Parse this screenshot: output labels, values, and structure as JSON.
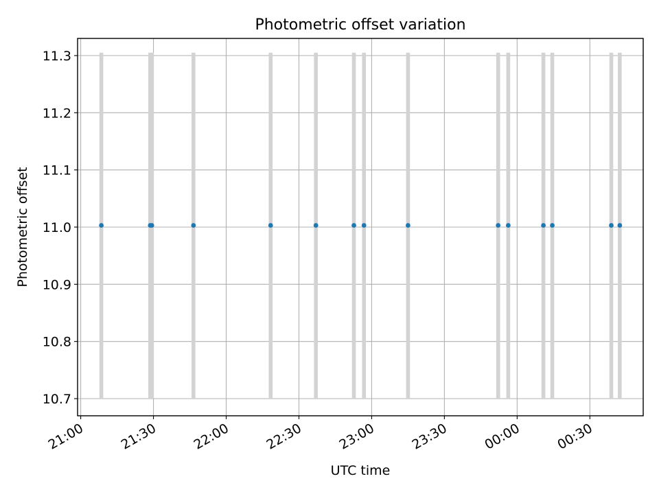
{
  "chart_data": {
    "type": "scatter",
    "title": "Photometric offset variation",
    "xlabel": "UTC time",
    "ylabel": "Photometric offset",
    "x_is_time": true,
    "xlim": [
      "21:00",
      "00:50"
    ],
    "ylim": [
      10.67,
      11.33
    ],
    "x_ticks": [
      "21:00",
      "21:30",
      "22:00",
      "22:30",
      "23:00",
      "23:30",
      "00:00",
      "00:30"
    ],
    "y_ticks": [
      10.7,
      10.8,
      10.9,
      11.0,
      11.1,
      11.2,
      11.3
    ],
    "grid": true,
    "points": {
      "x": [
        "21:08:30",
        "21:28:40",
        "21:29:20",
        "21:46:30",
        "22:18:20",
        "22:37:00",
        "22:52:40",
        "22:56:50",
        "23:15:00",
        "23:52:10",
        "23:56:20",
        "00:10:50",
        "00:14:30",
        "00:38:50",
        "00:42:20"
      ],
      "y": [
        11.003,
        11.003,
        11.003,
        11.003,
        11.003,
        11.003,
        11.003,
        11.003,
        11.003,
        11.003,
        11.003,
        11.003,
        11.003,
        11.003,
        11.003
      ],
      "color": "#1f77b4"
    },
    "vertical_bands": {
      "x": [
        "21:08:30",
        "21:28:40",
        "21:29:20",
        "21:46:30",
        "22:18:20",
        "22:37:00",
        "22:52:40",
        "22:56:50",
        "23:15:00",
        "23:52:10",
        "23:56:20",
        "00:10:50",
        "00:14:30",
        "00:38:50",
        "00:42:20"
      ],
      "y_range": [
        10.7,
        11.305
      ],
      "color": "#d3d3d3"
    }
  }
}
